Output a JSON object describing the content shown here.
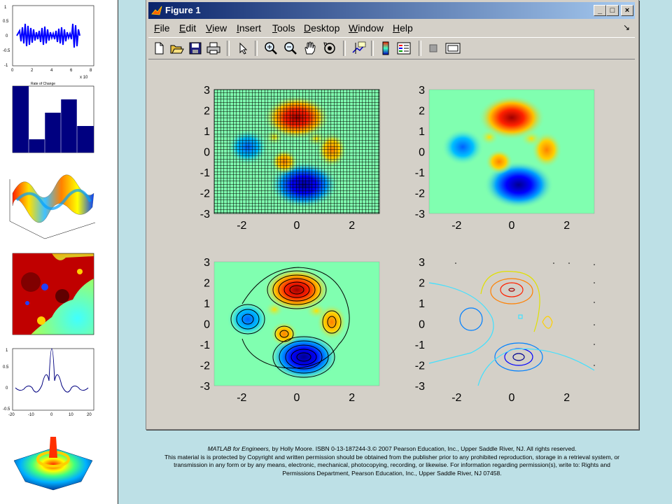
{
  "window": {
    "title": "Figure 1",
    "controls": [
      "_",
      "□",
      "×"
    ]
  },
  "menubar": {
    "items": [
      {
        "label": "File",
        "key": "F",
        "rest": "ile"
      },
      {
        "label": "Edit",
        "key": "E",
        "rest": "dit"
      },
      {
        "label": "View",
        "key": "V",
        "rest": "iew"
      },
      {
        "label": "Insert",
        "key": "I",
        "rest": "nsert"
      },
      {
        "label": "Tools",
        "key": "T",
        "rest": "ools"
      },
      {
        "label": "Desktop",
        "key": "D",
        "rest": "esktop"
      },
      {
        "label": "Window",
        "key": "W",
        "rest": "indow"
      },
      {
        "label": "Help",
        "key": "H",
        "rest": "elp"
      }
    ],
    "dock_arrow": "↘"
  },
  "toolbar": {
    "tools": [
      "new-file-icon",
      "open-folder-icon",
      "save-icon",
      "print-icon",
      "pointer-icon",
      "zoom-in-icon",
      "zoom-out-icon",
      "pan-hand-icon",
      "rotate-3d-icon",
      "data-cursor-icon",
      "colorbar-icon",
      "legend-icon",
      "hide-plot-tools-icon",
      "show-plot-tools-icon"
    ]
  },
  "plots": {
    "yticks": [
      "3",
      "2",
      "1",
      "0",
      "-1",
      "-2",
      "-3"
    ],
    "xticks": [
      "-2",
      "0",
      "2"
    ],
    "panels": [
      "pcolor-mesh",
      "shaded-pcolor",
      "filled-contour",
      "contour-lines"
    ]
  },
  "sidebar": {
    "thumb1": {
      "yticks": [
        "1",
        "0.5",
        "0",
        "-0.5",
        "-1"
      ],
      "xticks": [
        "0",
        "2",
        "4",
        "6",
        "8"
      ],
      "exponent": "x 10"
    },
    "thumb2": {
      "title": "Rate of Change"
    },
    "thumb5": {
      "yticks": [
        "1",
        "0.5",
        "0",
        "-0.5"
      ],
      "xticks": [
        "-20",
        "-10",
        "0",
        "10",
        "20"
      ]
    }
  },
  "colors": {
    "titlebar_start": "#0a246a",
    "titlebar_end": "#a6caf0",
    "window_face": "#d4d0c8",
    "slide_background": "#bde0e6",
    "plot_background": "#80ffb0"
  },
  "footer": {
    "book_title": "MATLAB for Engineers,",
    "line1_rest": " by Holly Moore. ISBN 0-13-187244-3.© 2007 Pearson Education, Inc., Upper Saddle River, NJ. All rights reserved.",
    "line2": "This material is is protected by Copyright and written permission should be obtained from the publisher prior to any prohibited reproduction, storage in a retrieval system, or transmission in any form or by any means, electronic, mechanical, photocopying, recording, or likewise. For information regarding permission(s), write to: Rights and Permissions Department, Pearson Education, Inc., Upper Saddle River, NJ 07458."
  }
}
